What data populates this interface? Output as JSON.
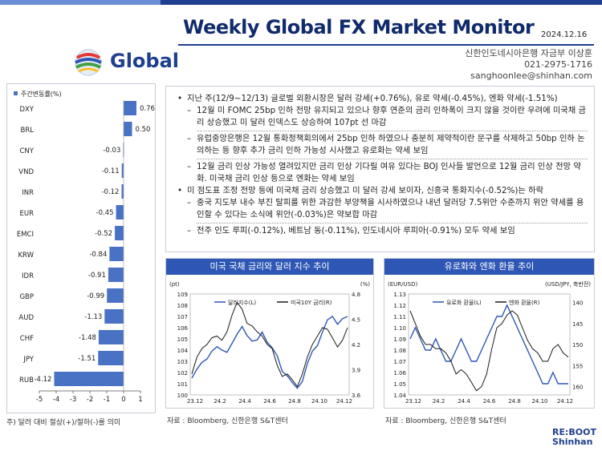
{
  "header": {
    "title": "Weekly Global FX Market Monitor",
    "date": "2024.12.16",
    "brand": "Global",
    "contact": [
      "신한인도네시아은행 자금부 이상훈",
      "021-2975-1716",
      "sanghoonlee@shinhan.com"
    ]
  },
  "bullets": {
    "b1": "지난 주(12/9~12/13) 글로벌 외환시장은 달러 강세(+0.76%), 유로 약세(-0.45%), 엔화 약세(-1.51%)",
    "b1_sub": [
      "12월 미 FOMC 25bp 인하 전망 유지되고 있으나 향후 연준의 금리 인하폭이 크지 않을 것이란 우려에 미국채 금리 상승했고 미 달러 인덱스도 상승하여 107pt 선 마감",
      "유럽중앙은행은 12월 통화정책회의에서 25bp 인하 하였으나 충분히 제약적이란 문구를 삭제하고 50bp 인하 논의하는 등 향후 추가 금리 인하 가능성 시사했고 유로화는 약세 보임",
      "12월 금리 인상 가능성 열려있지만 금리 인상 기다릴 여유 있다는 BOJ 인사들 발언으로 12월 금리 인상 전망 약화. 미국채 금리 인상 등으로 엔화는 약세 보임"
    ],
    "b2": "미 점도표 조정 전망 등에 미국채 금리 상승했고 미 달러 강세 보이자, 신흥국 통화지수(-0.52%)는 하락",
    "b2_sub": [
      "중국 지도부 내수 부진 탈피를 위한 과감한 부양책을 시사하였으나 내년 달러당 7.5위안 수준까지 위안 약세를 용인할 수 있다는 소식에 위안(-0.03%)은 약보합 마감",
      "전주 인도 루피(-0.12%), 베트남 동(-0.11%), 인도네시아 루피아(-0.91%) 모두 약세 보임"
    ]
  },
  "footnote": "주) 달러 대비 절상(+)/절하(-)를 의미",
  "source": "자료 : Bloomberg, 신한은행 S&T센터",
  "colors": {
    "accent": "#2e57b5",
    "bar": "#4a72c4",
    "line_dark": "#1a1a1a",
    "line_blue": "#2e57b5"
  },
  "footer_logo": {
    "line1": "RE:BOOT",
    "line2": "Shinhan"
  },
  "chart_data": [
    {
      "type": "bar",
      "orientation": "horizontal",
      "legend": "주간변동률(%)",
      "categories": [
        "DXY",
        "BRL",
        "CNY",
        "VND",
        "INR",
        "EUR",
        "EMCI",
        "KRW",
        "IDR",
        "GBP",
        "AUD",
        "CHF",
        "JPY",
        "RUB"
      ],
      "values": [
        0.76,
        0.5,
        -0.03,
        -0.11,
        -0.12,
        -0.45,
        -0.52,
        -0.84,
        -0.91,
        -0.99,
        -1.13,
        -1.48,
        -1.51,
        -4.12
      ],
      "labels": [
        "0.76",
        "0.50",
        "-0.03",
        "-0.11",
        "-0.12",
        "-0.45",
        "-0.52",
        "-0.84",
        "-0.91",
        "-0.99",
        "-1.13",
        "-1.48",
        "-1.51",
        "-4.12"
      ],
      "xlim": [
        -5,
        1
      ],
      "xticks": [
        "-5",
        "-4",
        "-3",
        "-2",
        "-1",
        "0",
        "1"
      ]
    },
    {
      "type": "line",
      "title": "미국 국채 금리와 달러 지수 추이",
      "x_ticks": [
        "23.12",
        "24.2",
        "24.4",
        "24.6",
        "24.8",
        "24.10",
        "24.12"
      ],
      "y_left_label": "(pt)",
      "y_right_label": "(%)",
      "y_left_ticks": [
        "100",
        "101",
        "102",
        "103",
        "104",
        "105",
        "106",
        "107",
        "108",
        "109"
      ],
      "y_right_ticks": [
        "3.6",
        "3.9",
        "4.2",
        "4.5",
        "4.8"
      ],
      "ylim_left": [
        100,
        109
      ],
      "ylim_right": [
        3.6,
        4.8
      ],
      "series": [
        {
          "name": "달러지수(L)",
          "axis": "left",
          "color": "#2e57b5",
          "values": [
            101.5,
            102.3,
            102.9,
            103.2,
            103.9,
            104.3,
            104.0,
            103.8,
            104.6,
            105.4,
            106.1,
            105.3,
            104.8,
            104.9,
            105.6,
            104.7,
            104.2,
            103.5,
            102.1,
            101.7,
            101.1,
            100.6,
            101.2,
            102.8,
            103.9,
            104.4,
            105.6,
            106.7,
            107.0,
            106.3,
            106.8,
            107.0
          ]
        },
        {
          "name": "미국10Y 금리(R)",
          "axis": "right",
          "color": "#1a1a1a",
          "values": [
            3.85,
            4.05,
            4.15,
            4.2,
            4.28,
            4.3,
            4.25,
            4.35,
            4.55,
            4.7,
            4.62,
            4.45,
            4.42,
            4.35,
            4.3,
            4.2,
            4.15,
            3.95,
            3.82,
            3.85,
            3.78,
            3.7,
            3.85,
            4.05,
            4.2,
            4.3,
            4.4,
            4.38,
            4.28,
            4.17,
            4.25,
            4.4
          ]
        }
      ]
    },
    {
      "type": "line",
      "title": "유로화와 엔화 환율 추이",
      "x_ticks": [
        "23.12",
        "24.2",
        "24.4",
        "24.6",
        "24.8",
        "24.10",
        "24.12"
      ],
      "y_left_label": "(EUR/USD)",
      "y_right_label": "(USD/JPY, 축반전)",
      "y_left_ticks": [
        "1.04",
        "1.05",
        "1.06",
        "1.07",
        "1.08",
        "1.09",
        "1.10",
        "1.11",
        "1.12",
        "1.13"
      ],
      "y_right_ticks": [
        "140",
        "145",
        "150",
        "155",
        "160"
      ],
      "ylim_left": [
        1.04,
        1.13
      ],
      "ylim_right_inverted": [
        138,
        162
      ],
      "series": [
        {
          "name": "유로화 환율(L)",
          "axis": "left",
          "color": "#2e57b5",
          "values": [
            1.09,
            1.1,
            1.09,
            1.08,
            1.08,
            1.09,
            1.08,
            1.07,
            1.07,
            1.08,
            1.09,
            1.08,
            1.07,
            1.07,
            1.08,
            1.09,
            1.1,
            1.11,
            1.11,
            1.12,
            1.11,
            1.1,
            1.09,
            1.08,
            1.07,
            1.06,
            1.05,
            1.05,
            1.06,
            1.05,
            1.05,
            1.05
          ]
        },
        {
          "name": "엔화 환율(R)",
          "axis": "right",
          "color": "#1a1a1a",
          "values": [
            142,
            145,
            148,
            150,
            150,
            151,
            151,
            152,
            154,
            157,
            156,
            157,
            159,
            161,
            160,
            157,
            151,
            146,
            145,
            143,
            142,
            143,
            146,
            149,
            151,
            152,
            154,
            154,
            151,
            150,
            152,
            153
          ]
        }
      ]
    }
  ]
}
